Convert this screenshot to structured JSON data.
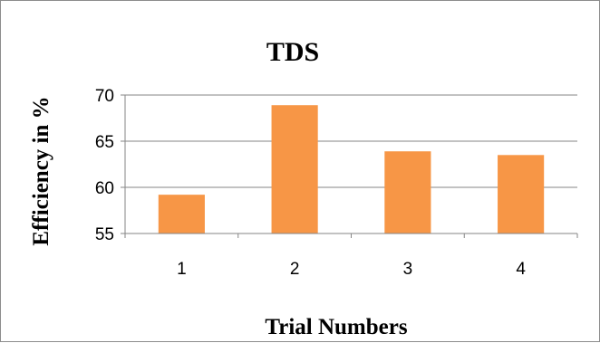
{
  "chart_data": {
    "type": "bar",
    "title": "TDS",
    "xlabel": "Trial Numbers",
    "ylabel": "Efficiency in %",
    "categories": [
      "1",
      "2",
      "3",
      "4"
    ],
    "values": [
      59.2,
      68.9,
      63.9,
      63.5
    ],
    "ylim": [
      55,
      70
    ],
    "yticks": [
      55,
      60,
      65,
      70
    ],
    "grid": true,
    "legend": "none",
    "bar_color": "#f79646",
    "grid_color": "#868686"
  }
}
